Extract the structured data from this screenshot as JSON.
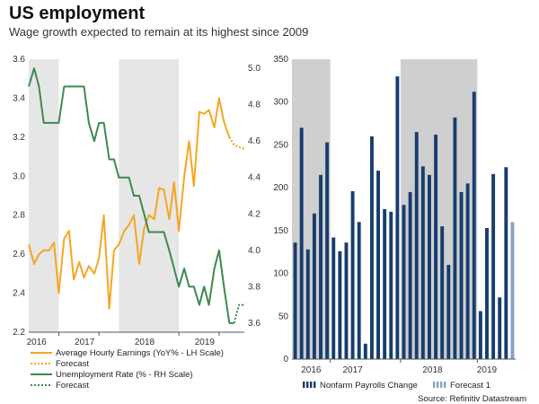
{
  "header": {
    "title": "US employment",
    "subtitle": "Wage growth expected to remain at its highest since 2009"
  },
  "source": "Source: Refinitiv Datastream",
  "chart_data": [
    {
      "type": "line",
      "left_axis": {
        "ticks": [
          "3.6",
          "3.4",
          "3.2",
          "3.0",
          "2.8",
          "2.6",
          "2.4",
          "2.2"
        ],
        "range": [
          2.2,
          3.6
        ]
      },
      "right_axis": {
        "ticks": [
          "5.0",
          "4.8",
          "4.6",
          "4.4",
          "4.2",
          "4.0",
          "3.8",
          "3.6"
        ],
        "range": [
          3.55,
          5.05
        ]
      },
      "x_labels": [
        "2016",
        "2017",
        "2018",
        "2019"
      ],
      "x_range": [
        2015.83,
        2019.42
      ],
      "shaded_periods": [
        [
          2015.83,
          2016.33
        ],
        [
          2017.33,
          2018.33
        ]
      ],
      "series": [
        {
          "name": "Average Hourly Earnings (YoY% - LH Scale)",
          "axis": "left",
          "color": "#f5a623",
          "x": [
            2015.83,
            2015.92,
            2016.0,
            2016.08,
            2016.17,
            2016.25,
            2016.33,
            2016.42,
            2016.5,
            2016.58,
            2016.67,
            2016.75,
            2016.83,
            2016.92,
            2017.0,
            2017.08,
            2017.17,
            2017.25,
            2017.33,
            2017.42,
            2017.5,
            2017.58,
            2017.67,
            2017.75,
            2017.83,
            2017.92,
            2018.0,
            2018.08,
            2018.17,
            2018.25,
            2018.33,
            2018.42,
            2018.5,
            2018.58,
            2018.67,
            2018.75,
            2018.83,
            2018.92,
            2019.0,
            2019.08,
            2019.17
          ],
          "values": [
            2.65,
            2.55,
            2.6,
            2.62,
            2.62,
            2.66,
            2.4,
            2.68,
            2.72,
            2.47,
            2.56,
            2.48,
            2.54,
            2.5,
            2.58,
            2.8,
            2.32,
            2.62,
            2.65,
            2.72,
            2.75,
            2.8,
            2.55,
            2.73,
            2.8,
            2.78,
            2.94,
            2.93,
            2.78,
            2.97,
            2.72,
            3.0,
            3.18,
            2.95,
            3.33,
            3.32,
            3.34,
            3.25,
            3.4,
            3.28,
            3.2
          ]
        },
        {
          "name": "Forecast",
          "axis": "left",
          "color": "#f5a623",
          "dashed": true,
          "x": [
            2019.17,
            2019.25,
            2019.33,
            2019.42
          ],
          "values": [
            3.2,
            3.16,
            3.15,
            3.14
          ]
        },
        {
          "name": "Unemployment Rate (% - RH Scale)",
          "axis": "right",
          "color": "#3c8a4e",
          "x": [
            2015.83,
            2015.92,
            2016.0,
            2016.08,
            2016.17,
            2016.25,
            2016.33,
            2016.42,
            2016.5,
            2016.58,
            2016.67,
            2016.75,
            2016.83,
            2016.92,
            2017.0,
            2017.08,
            2017.17,
            2017.25,
            2017.33,
            2017.42,
            2017.5,
            2017.58,
            2017.67,
            2017.75,
            2017.83,
            2017.92,
            2018.0,
            2018.08,
            2018.17,
            2018.25,
            2018.33,
            2018.42,
            2018.5,
            2018.58,
            2018.67,
            2018.75,
            2018.83,
            2018.92,
            2019.0,
            2019.08,
            2019.17,
            2019.25
          ],
          "values": [
            4.9,
            5.0,
            4.9,
            4.7,
            4.7,
            4.7,
            4.7,
            4.9,
            4.9,
            4.9,
            4.9,
            4.9,
            4.7,
            4.6,
            4.7,
            4.7,
            4.5,
            4.5,
            4.4,
            4.4,
            4.4,
            4.3,
            4.3,
            4.2,
            4.1,
            4.1,
            4.1,
            4.1,
            4.0,
            3.9,
            3.8,
            3.9,
            3.8,
            3.8,
            3.7,
            3.8,
            3.7,
            3.9,
            4.0,
            3.8,
            3.6,
            3.6
          ]
        },
        {
          "name": "Forecast",
          "axis": "right",
          "color": "#3c8a4e",
          "dashed": true,
          "x": [
            2019.25,
            2019.33,
            2019.42
          ],
          "values": [
            3.6,
            3.7,
            3.7
          ]
        }
      ],
      "legend": [
        {
          "label": "Average Hourly Earnings (YoY% - LH Scale)",
          "color": "#f5a623",
          "style": "solid"
        },
        {
          "label": "Forecast",
          "color": "#f5a623",
          "style": "dotted"
        },
        {
          "label": "Unemployment Rate (% - RH Scale)",
          "color": "#3c8a4e",
          "style": "solid"
        },
        {
          "label": "Forecast",
          "color": "#3c8a4e",
          "style": "dotted"
        }
      ]
    },
    {
      "type": "bar",
      "y_axis": {
        "ticks": [
          "350",
          "300",
          "250",
          "200",
          "150",
          "100",
          "50",
          "0"
        ],
        "range": [
          0,
          350
        ]
      },
      "x_labels": [
        "2016",
        "2017",
        "2018",
        "2019"
      ],
      "shaded_month_ranges": [
        [
          0,
          6
        ],
        [
          17,
          29
        ]
      ],
      "series": [
        {
          "name": "Nonfarm Payrolls Change",
          "color": "#163d6e",
          "values": [
            136,
            270,
            128,
            170,
            215,
            253,
            142,
            126,
            136,
            196,
            160,
            18,
            260,
            220,
            175,
            172,
            330,
            180,
            195,
            265,
            225,
            215,
            262,
            155,
            110,
            282,
            195,
            205,
            312,
            56,
            153,
            216,
            72,
            224
          ]
        },
        {
          "name": "Forecast 1",
          "color": "#8aa3c4",
          "values": [
            160
          ]
        }
      ],
      "legend": [
        {
          "label": "Nonfarm Payrolls Change",
          "color": "#163d6e"
        },
        {
          "label": "Forecast 1",
          "color": "#8aa3c4"
        }
      ]
    }
  ]
}
